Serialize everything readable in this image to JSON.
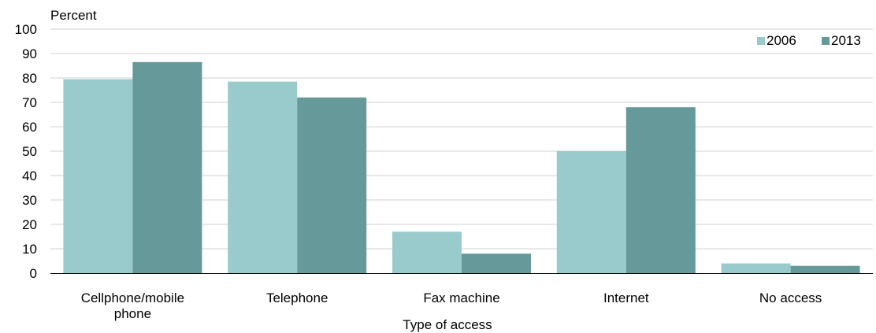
{
  "chart_data": {
    "type": "bar",
    "ylabel": "Percent",
    "xlabel": "Type of access",
    "ylim": [
      0,
      100
    ],
    "yticks": [
      0,
      10,
      20,
      30,
      40,
      50,
      60,
      70,
      80,
      90,
      100
    ],
    "grid": true,
    "legend_position": "top-right",
    "categories": [
      "Cellphone/mobile phone",
      "Telephone",
      "Fax machine",
      "Internet",
      "No access"
    ],
    "category_lines": [
      [
        "Cellphone/mobile",
        "phone"
      ],
      [
        "Telephone"
      ],
      [
        "Fax machine"
      ],
      [
        "Internet"
      ],
      [
        "No access"
      ]
    ],
    "series": [
      {
        "name": "2006",
        "color": "#9acbcc",
        "values": [
          79.5,
          78.5,
          17,
          50,
          4
        ]
      },
      {
        "name": "2013",
        "color": "#669999",
        "values": [
          86.5,
          72,
          8,
          68,
          3
        ]
      }
    ]
  }
}
